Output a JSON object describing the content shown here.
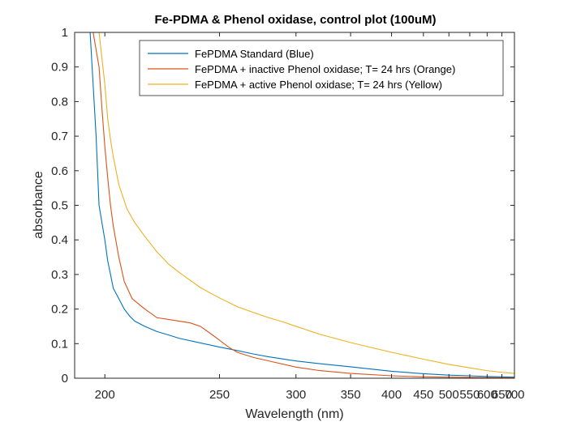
{
  "chart_data": {
    "type": "line",
    "title": "Fe-PDMA & Phenol oxidase, control plot (100uM)",
    "xlabel": "Wavelength (nm)",
    "ylabel": "absorbance",
    "xscale": "reciprocal",
    "xlim": [
      190,
      700
    ],
    "ylim": [
      0,
      1
    ],
    "xticks": [
      200,
      250,
      300,
      350,
      400,
      450,
      500,
      550,
      600,
      650,
      700
    ],
    "yticks": [
      0,
      0.1,
      0.2,
      0.3,
      0.4,
      0.5,
      0.6,
      0.7,
      0.8,
      0.9,
      1
    ],
    "ytick_labels": [
      "0",
      "0.1",
      "0.2",
      "0.3",
      "0.4",
      "0.5",
      "0.6",
      "0.7",
      "0.8",
      "0.9",
      "1"
    ],
    "grid": false,
    "legend_position": "top-right",
    "series": [
      {
        "name": "FePDMA Standard (Blue)",
        "color": "#0072BD",
        "x": [
          195,
          197,
          198,
          200,
          201,
          202,
          203,
          205,
          207,
          209,
          211,
          215,
          220,
          225,
          230,
          240,
          250,
          260,
          270,
          280,
          300,
          320,
          350,
          400,
          450,
          500,
          550,
          600,
          650,
          700
        ],
        "y": [
          1.0,
          0.7,
          0.5,
          0.4,
          0.34,
          0.3,
          0.26,
          0.23,
          0.2,
          0.18,
          0.165,
          0.15,
          0.135,
          0.125,
          0.115,
          0.102,
          0.09,
          0.08,
          0.07,
          0.062,
          0.05,
          0.042,
          0.033,
          0.02,
          0.013,
          0.009,
          0.007,
          0.005,
          0.004,
          0.003
        ]
      },
      {
        "name": "FePDMA + inactive Phenol oxidase; T= 24 hrs (Orange)",
        "color": "#D95319",
        "x": [
          196,
          198,
          199,
          200,
          201,
          202,
          203,
          205,
          207,
          210,
          215,
          220,
          230,
          235,
          240,
          245,
          250,
          255,
          260,
          270,
          280,
          300,
          320,
          350,
          400,
          450,
          500,
          600,
          700
        ],
        "y": [
          1.0,
          0.9,
          0.78,
          0.67,
          0.58,
          0.5,
          0.44,
          0.35,
          0.28,
          0.23,
          0.2,
          0.175,
          0.165,
          0.16,
          0.15,
          0.13,
          0.11,
          0.09,
          0.075,
          0.06,
          0.05,
          0.032,
          0.022,
          0.014,
          0.007,
          0.004,
          0.003,
          0.002,
          0.001
        ]
      },
      {
        "name": "FePDMA + active Phenol oxidase; T= 24 hrs (Yellow)",
        "color": "#EDB120",
        "x": [
          198,
          200,
          201,
          202,
          203,
          205,
          208,
          211,
          215,
          220,
          225,
          230,
          240,
          250,
          260,
          270,
          280,
          290,
          300,
          320,
          350,
          400,
          450,
          500,
          550,
          600,
          650,
          700
        ],
        "y": [
          1.0,
          0.85,
          0.75,
          0.69,
          0.64,
          0.56,
          0.49,
          0.45,
          0.41,
          0.365,
          0.33,
          0.305,
          0.262,
          0.232,
          0.207,
          0.19,
          0.175,
          0.163,
          0.15,
          0.127,
          0.103,
          0.075,
          0.055,
          0.04,
          0.03,
          0.022,
          0.017,
          0.014
        ]
      }
    ]
  }
}
